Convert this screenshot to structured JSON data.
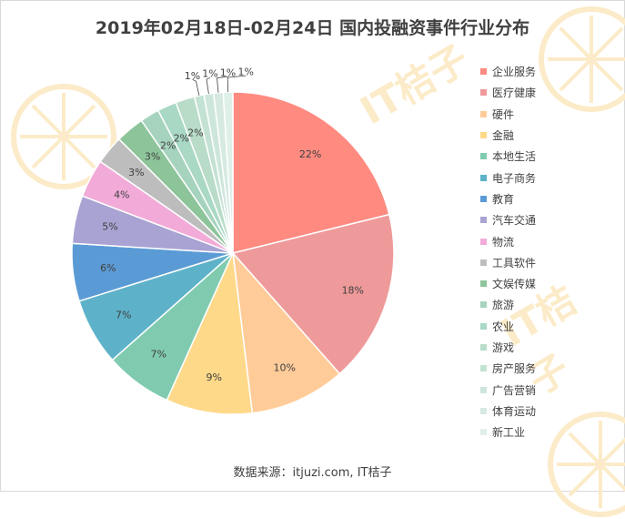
{
  "title": "2019年02月18日-02月24日 国内投融资事件行业分布",
  "source": "数据来源：itjuzi.com, IT桔子",
  "watermark": "IT桔子",
  "chart_data": {
    "type": "pie",
    "title": "2019年02月18日-02月24日 国内投融资事件行业分布",
    "legend_position": "right",
    "slices": [
      {
        "name": "企业服务",
        "value": 22,
        "label": "22%",
        "color": "#FF8A80"
      },
      {
        "name": "医疗健康",
        "value": 18,
        "label": "18%",
        "color": "#EF9A9A"
      },
      {
        "name": "硬件",
        "value": 10,
        "label": "10%",
        "color": "#FFCC99"
      },
      {
        "name": "金融",
        "value": 9,
        "label": "9%",
        "color": "#FFD98A"
      },
      {
        "name": "本地生活",
        "value": 7,
        "label": "7%",
        "color": "#80CBB0"
      },
      {
        "name": "电子商务",
        "value": 7,
        "label": "7%",
        "color": "#5DB2C9"
      },
      {
        "name": "教育",
        "value": 6,
        "label": "6%",
        "color": "#5B9BD5"
      },
      {
        "name": "汽车交通",
        "value": 5,
        "label": "5%",
        "color": "#A9A3D3"
      },
      {
        "name": "物流",
        "value": 4,
        "label": "4%",
        "color": "#F2ABD8"
      },
      {
        "name": "工具软件",
        "value": 3,
        "label": "3%",
        "color": "#BDBDBD"
      },
      {
        "name": "文娱传媒",
        "value": 3,
        "label": "3%",
        "color": "#8DC49A"
      },
      {
        "name": "旅游",
        "value": 2,
        "label": "2%",
        "color": "#A6D3BE"
      },
      {
        "name": "农业",
        "value": 2,
        "label": "2%",
        "color": "#A9D8C5"
      },
      {
        "name": "游戏",
        "value": 2,
        "label": "2%",
        "color": "#B8DCC8"
      },
      {
        "name": "房产服务",
        "value": 1,
        "label": "1%",
        "color": "#C4E2D4"
      },
      {
        "name": "广告营销",
        "value": 1,
        "label": "1%",
        "color": "#CDE6DB"
      },
      {
        "name": "体育运动",
        "value": 1,
        "label": "1%",
        "color": "#D6EAE2"
      },
      {
        "name": "新工业",
        "value": 1,
        "label": "1%",
        "color": "#DFF0E9"
      }
    ]
  }
}
